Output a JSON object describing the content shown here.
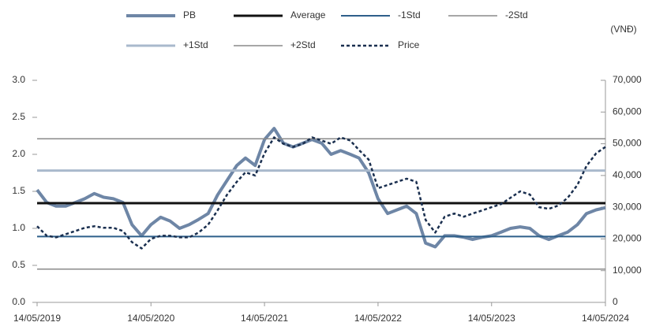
{
  "chart_data": {
    "type": "line",
    "y2_axis_label": "(VNĐ)",
    "xlim": [
      "14/05/2019",
      "14/05/2024"
    ],
    "xticks": [
      "14/05/2019",
      "14/05/2020",
      "14/05/2021",
      "14/05/2022",
      "14/05/2023",
      "14/05/2024"
    ],
    "x": [
      "14/05/2019",
      "14/06/2019",
      "14/07/2019",
      "14/08/2019",
      "14/09/2019",
      "14/10/2019",
      "14/11/2019",
      "14/12/2019",
      "14/01/2020",
      "14/02/2020",
      "14/03/2020",
      "14/04/2020",
      "14/05/2020",
      "14/06/2020",
      "14/07/2020",
      "14/08/2020",
      "14/09/2020",
      "14/10/2020",
      "14/11/2020",
      "14/12/2020",
      "14/01/2021",
      "14/02/2021",
      "14/03/2021",
      "14/04/2021",
      "14/05/2021",
      "14/06/2021",
      "14/07/2021",
      "14/08/2021",
      "14/09/2021",
      "14/10/2021",
      "14/11/2021",
      "14/12/2021",
      "14/01/2022",
      "14/02/2022",
      "14/03/2022",
      "14/04/2022",
      "14/05/2022",
      "14/06/2022",
      "14/07/2022",
      "14/08/2022",
      "14/09/2022",
      "14/10/2022",
      "14/11/2022",
      "14/12/2022",
      "14/01/2023",
      "14/02/2023",
      "14/03/2023",
      "14/04/2023",
      "14/05/2023",
      "14/06/2023",
      "14/07/2023",
      "14/08/2023",
      "14/09/2023",
      "14/10/2023",
      "14/11/2023",
      "14/12/2023",
      "14/01/2024",
      "14/02/2024",
      "14/03/2024",
      "14/04/2024",
      "14/05/2024"
    ],
    "ylim": [
      0,
      3
    ],
    "yticks": [
      {
        "value": 0,
        "label": "0.0"
      },
      {
        "value": 0.5,
        "label": "0.5"
      },
      {
        "value": 1,
        "label": "1.0"
      },
      {
        "value": 1.5,
        "label": "1.5"
      },
      {
        "value": 2,
        "label": "2.0"
      },
      {
        "value": 2.5,
        "label": "2.5"
      },
      {
        "value": 3,
        "label": "3.0"
      }
    ],
    "y2lim": [
      0,
      70000
    ],
    "y2ticks": [
      0,
      {
        "value": 10000,
        "label": "10,000"
      },
      {
        "value": 20000,
        "label": "20,000"
      },
      {
        "value": 30000,
        "label": "30,000"
      },
      {
        "value": 40000,
        "label": "40,000"
      },
      {
        "value": 50000,
        "label": "50,000"
      },
      {
        "value": 60000,
        "label": "60,000"
      },
      {
        "value": 70000,
        "label": "70,000"
      }
    ],
    "series": [
      {
        "name": "PB",
        "color": "#6e86a6",
        "width": 4,
        "values": [
          1.52,
          1.35,
          1.3,
          1.3,
          1.35,
          1.4,
          1.47,
          1.42,
          1.4,
          1.35,
          1.05,
          0.9,
          1.05,
          1.15,
          1.1,
          1.0,
          1.05,
          1.12,
          1.2,
          1.45,
          1.65,
          1.85,
          1.95,
          1.85,
          2.2,
          2.35,
          2.15,
          2.1,
          2.15,
          2.2,
          2.15,
          2.0,
          2.05,
          2.0,
          1.95,
          1.75,
          1.4,
          1.2,
          1.25,
          1.3,
          1.2,
          0.8,
          0.75,
          0.9,
          0.9,
          0.88,
          0.85,
          0.88,
          0.9,
          0.95,
          1.0,
          1.02,
          1.0,
          0.9,
          0.85,
          0.9,
          0.95,
          1.05,
          1.2,
          1.25,
          1.28
        ]
      },
      {
        "name": "Average",
        "color": "#111111",
        "width": 3,
        "value": 1.34
      },
      {
        "name": "-1Std",
        "color": "#2e5f8a",
        "width": 2,
        "value": 0.89
      },
      {
        "name": "-2Std",
        "color": "#8a8a8a",
        "width": 1.5,
        "value": 0.45
      },
      {
        "name": "+1Std",
        "color": "#a9b9cc",
        "width": 3,
        "value": 1.78
      },
      {
        "name": "+2Std",
        "color": "#8a8a8a",
        "width": 1.5,
        "value": 2.21
      },
      {
        "name": "Price",
        "color": "#1a2f4f",
        "width": 2.5,
        "dashed": true,
        "axis": "y2",
        "values": [
          24000,
          21000,
          20500,
          21500,
          22500,
          23500,
          24000,
          23500,
          23500,
          22500,
          19000,
          17000,
          20000,
          21000,
          21000,
          20500,
          20500,
          22000,
          24500,
          29000,
          34000,
          38000,
          41000,
          40000,
          47000,
          52000,
          50000,
          49000,
          50000,
          52000,
          51000,
          50000,
          52000,
          51000,
          48000,
          45000,
          36000,
          37000,
          38000,
          39000,
          38000,
          26000,
          22000,
          27000,
          28000,
          27000,
          28000,
          29000,
          30000,
          31000,
          33000,
          35000,
          34000,
          30000,
          29500,
          30500,
          33000,
          37000,
          43000,
          47000,
          49000
        ]
      }
    ]
  }
}
